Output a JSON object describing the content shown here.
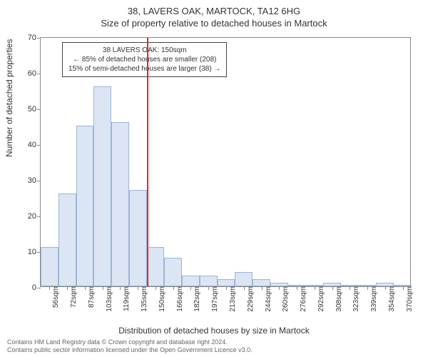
{
  "chart": {
    "type": "histogram",
    "title": "38, LAVERS OAK, MARTOCK, TA12 6HG",
    "subtitle": "Size of property relative to detached houses in Martock",
    "ylabel": "Number of detached properties",
    "xlabel": "Distribution of detached houses by size in Martock",
    "ylim": [
      0,
      70
    ],
    "ytick_step": 10,
    "yticks": [
      0,
      10,
      20,
      30,
      40,
      50,
      60,
      70
    ],
    "background_color": "#ffffff",
    "border_color": "#888888",
    "bar_fill": "#dbe5f4",
    "bar_stroke": "#9cb4d8",
    "ref_line_color": "#d62c2c",
    "ref_line_value": 150,
    "x_categories": [
      "56sqm",
      "72sqm",
      "87sqm",
      "103sqm",
      "119sqm",
      "135sqm",
      "150sqm",
      "166sqm",
      "182sqm",
      "197sqm",
      "213sqm",
      "229sqm",
      "244sqm",
      "260sqm",
      "276sqm",
      "292sqm",
      "308sqm",
      "323sqm",
      "339sqm",
      "354sqm",
      "370sqm"
    ],
    "values": [
      11,
      26,
      45,
      56,
      46,
      27,
      11,
      8,
      3,
      3,
      2,
      4,
      2,
      1,
      0,
      0,
      1,
      0,
      0,
      1,
      0
    ],
    "annotation": {
      "line1": "38 LAVERS OAK: 150sqm",
      "line2": "← 85% of detached houses are smaller (208)",
      "line3": "15% of semi-detached houses are larger (38) →"
    },
    "title_fontsize": 13,
    "label_fontsize": 12,
    "tick_fontsize": 11
  },
  "footer": {
    "line1": "Contains HM Land Registry data © Crown copyright and database right 2024.",
    "line2": "Contains public sector information licensed under the Open Government Licence v3.0."
  }
}
